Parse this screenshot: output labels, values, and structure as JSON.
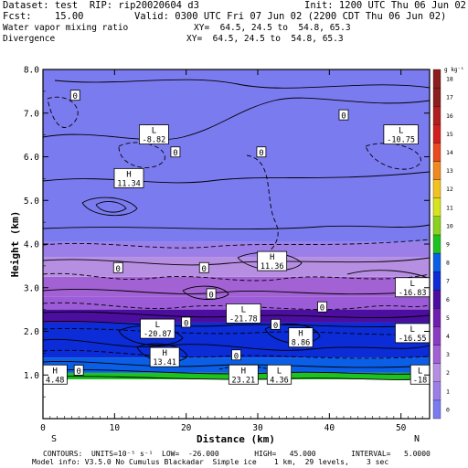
{
  "header": {
    "dataset": "Dataset: test  RIP: rip20020604 d3",
    "init": "Init: 1200 UTC Thu 06 Jun 02",
    "fcst": "Fcst:    15.00",
    "valid": "Valid: 0300 UTC Fri 07 Jun 02 (2200 CDT Thu 06 Jun 02)",
    "field1": "Water vapor mixing ratio",
    "xy1": "XY=  64.5, 24.5 to  54.8, 65.3",
    "field2": "Divergence",
    "xy2": "XY=  64.5, 24.5 to  54.8, 65.3"
  },
  "footer": {
    "contours": "CONTOURS:  UNITS=10⁻⁵ s⁻¹  LOW=  -26.000        HIGH=   45.000        INTERVAL=   5.0000",
    "model": "Model info: V3.5.0 No Cumulus Blackadar  Simple ice    1 km,  29 levels,    3 sec"
  },
  "colorbar": {
    "unit": "g kg⁻¹",
    "levels": [
      "0",
      "1",
      "2",
      "3",
      "4",
      "5",
      "6",
      "7",
      "8",
      "9",
      "10",
      "11",
      "12",
      "13",
      "14",
      "15",
      "16",
      "17",
      "18"
    ],
    "colors": [
      "#7b7bf0",
      "#9c7ee9",
      "#b78fe2",
      "#a262d3",
      "#8a3cc3",
      "#6f1fae",
      "#4b0e9f",
      "#0b2cd6",
      "#0b5fe6",
      "#1ec21e",
      "#8bd21e",
      "#d5e41e",
      "#f2c31e",
      "#f08a1e",
      "#ea4a1e",
      "#d21e1e",
      "#b01e1e",
      "#8c1e1e",
      "#8c1e1e"
    ]
  },
  "chart_data": {
    "type": "heatmap",
    "xlabel": "Distance (km)",
    "ylabel": "Height (km)",
    "xlim": [
      0,
      54
    ],
    "ylim": [
      0,
      8
    ],
    "xticks": [
      0,
      10,
      20,
      30,
      40,
      50
    ],
    "yticks": [
      "1.0",
      "2.0",
      "3.0",
      "4.0",
      "5.0",
      "6.0",
      "7.0",
      "8.0"
    ],
    "end_labels": {
      "left": "S",
      "right": "N"
    },
    "color_bands": [
      {
        "from": 0.0,
        "to": 0.9,
        "level": "terrain",
        "color": "#ffffff"
      },
      {
        "from": 0.9,
        "to": 1.05,
        "level": "8",
        "color": "#1ec21e"
      },
      {
        "from": 1.05,
        "to": 1.4,
        "level": "7",
        "color": "#0b5fe6"
      },
      {
        "from": 1.4,
        "to": 2.2,
        "level": "6",
        "color": "#0b2cd6"
      },
      {
        "from": 2.2,
        "to": 2.5,
        "level": "5",
        "color": "#4b0e9f"
      },
      {
        "from": 2.5,
        "to": 2.8,
        "level": "4",
        "color": "#9c5cd8"
      },
      {
        "from": 2.8,
        "to": 3.25,
        "level": "3",
        "color": "#a262d3"
      },
      {
        "from": 3.25,
        "to": 3.7,
        "level": "2",
        "color": "#b78fe2"
      },
      {
        "from": 3.7,
        "to": 4.05,
        "level": "1",
        "color": "#9c7ee9"
      },
      {
        "from": 4.05,
        "to": 8.0,
        "level": "0",
        "color": "#7b7bf0"
      }
    ],
    "labels": [
      {
        "text": "0",
        "x": 4.5,
        "y": 7.4
      },
      {
        "text": "0",
        "x": 42,
        "y": 6.95
      },
      {
        "text": "0",
        "x": 18.5,
        "y": 6.1
      },
      {
        "text": "0",
        "x": 30.5,
        "y": 6.1
      },
      {
        "text": "0",
        "x": 10.5,
        "y": 3.45
      },
      {
        "text": "0",
        "x": 22.5,
        "y": 3.45
      },
      {
        "text": "0",
        "x": 23.5,
        "y": 2.85
      },
      {
        "text": "0",
        "x": 39,
        "y": 2.55
      },
      {
        "text": "0",
        "x": 20,
        "y": 2.2
      },
      {
        "text": "0",
        "x": 32.5,
        "y": 2.15
      },
      {
        "text": "0",
        "x": 27,
        "y": 1.45
      },
      {
        "text": "0",
        "x": 5,
        "y": 1.1
      }
    ],
    "extrema": [
      {
        "kind": "L",
        "value": "-8.82",
        "x": 15.5,
        "y": 6.5
      },
      {
        "kind": "L",
        "value": "-10.75",
        "x": 50,
        "y": 6.5
      },
      {
        "kind": "H",
        "value": "11.34",
        "x": 12,
        "y": 5.5
      },
      {
        "kind": "H",
        "value": "11.36",
        "x": 32,
        "y": 3.6
      },
      {
        "kind": "L",
        "value": "-16.83",
        "x": 52.5,
        "y": 3.0
      },
      {
        "kind": "L",
        "value": "-21.78",
        "x": 28,
        "y": 2.4
      },
      {
        "kind": "L",
        "value": "-20.87",
        "x": 16,
        "y": 2.05
      },
      {
        "kind": "H",
        "value": "8.86",
        "x": 36,
        "y": 1.85
      },
      {
        "kind": "L",
        "value": "-16.55",
        "x": 52.5,
        "y": 1.95
      },
      {
        "kind": "H",
        "value": "13.41",
        "x": 17,
        "y": 1.4
      },
      {
        "kind": "H",
        "value": "4.48",
        "x": 1.5,
        "y": 1.0
      },
      {
        "kind": "H",
        "value": "23.21",
        "x": 28,
        "y": 1.0
      },
      {
        "kind": "L",
        "value": "4.36",
        "x": 33,
        "y": 1.0
      },
      {
        "kind": "L",
        "value": "-18",
        "x": 54,
        "y": 1.0
      }
    ]
  }
}
